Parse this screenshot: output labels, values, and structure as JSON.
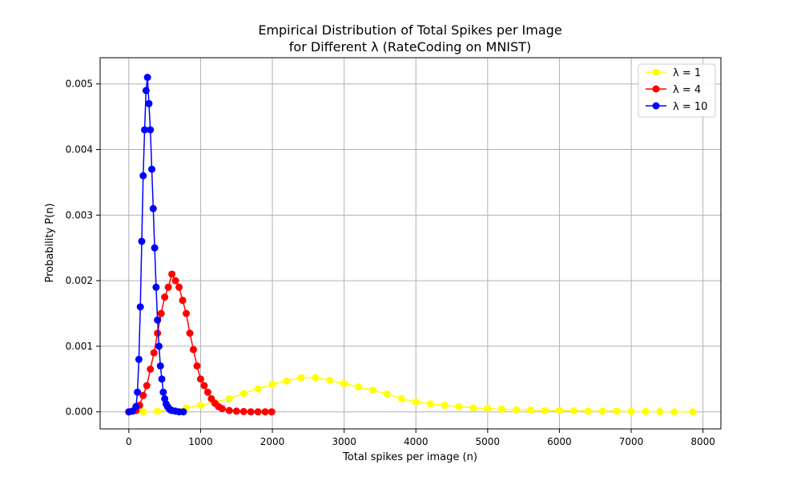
{
  "chart_data": {
    "type": "scatter",
    "title": [
      "Empirical Distribution of Total Spikes per Image",
      "for Different λ (RateCoding on MNIST)"
    ],
    "xlabel": "Total spikes per image (n)",
    "ylabel": "Probability P(n)",
    "xlim": [
      -400,
      8250
    ],
    "ylim": [
      -0.00026,
      0.0054
    ],
    "xticks": [
      0,
      1000,
      2000,
      3000,
      4000,
      5000,
      6000,
      7000,
      8000
    ],
    "yticks": [
      0.0,
      0.001,
      0.002,
      0.003,
      0.004,
      0.005
    ],
    "xtick_labels": [
      "0",
      "1000",
      "2000",
      "3000",
      "4000",
      "5000",
      "6000",
      "7000",
      "8000"
    ],
    "ytick_labels": [
      "0.000",
      "0.001",
      "0.002",
      "0.003",
      "0.004",
      "0.005"
    ],
    "grid": true,
    "legend_position": "top-right",
    "series": [
      {
        "name": "λ = 1",
        "color": "#ffff00",
        "x": [
          0,
          200,
          400,
          600,
          800,
          1000,
          1200,
          1400,
          1600,
          1800,
          2000,
          2200,
          2400,
          2600,
          2800,
          3000,
          3200,
          3400,
          3600,
          3800,
          4000,
          4200,
          4400,
          4600,
          4800,
          5000,
          5200,
          5400,
          5600,
          5800,
          6000,
          6200,
          6400,
          6600,
          6800,
          7000,
          7200,
          7400,
          7600,
          7860
        ],
        "values": [
          0.0,
          0.0,
          1e-05,
          3e-05,
          6e-05,
          0.0001,
          0.00015,
          0.0002,
          0.00028,
          0.00035,
          0.00042,
          0.00047,
          0.00052,
          0.00052,
          0.00048,
          0.00043,
          0.00038,
          0.00033,
          0.00027,
          0.0002,
          0.00015,
          0.00012,
          0.0001,
          8e-05,
          6e-05,
          5e-05,
          4e-05,
          3e-05,
          3e-05,
          2e-05,
          2e-05,
          1.5e-05,
          1e-05,
          1e-05,
          1e-05,
          5e-06,
          5e-06,
          5e-06,
          0.0,
          0.0
        ]
      },
      {
        "name": "λ = 4",
        "color": "#ff0000",
        "x": [
          0,
          100,
          150,
          200,
          250,
          300,
          350,
          400,
          450,
          500,
          550,
          600,
          650,
          700,
          750,
          800,
          850,
          900,
          950,
          1000,
          1050,
          1100,
          1150,
          1200,
          1250,
          1300,
          1400,
          1500,
          1600,
          1700,
          1800,
          1900,
          1990
        ],
        "values": [
          0.0,
          2e-05,
          0.0001,
          0.00025,
          0.0004,
          0.00065,
          0.0009,
          0.0012,
          0.0015,
          0.00175,
          0.0019,
          0.0021,
          0.002,
          0.0019,
          0.0017,
          0.0015,
          0.0012,
          0.00095,
          0.0007,
          0.0005,
          0.0004,
          0.0003,
          0.0002,
          0.00013,
          8e-05,
          5e-05,
          2e-05,
          1e-05,
          5e-06,
          0.0,
          0.0,
          0.0,
          0.0
        ]
      },
      {
        "name": "λ = 10",
        "color": "#0000ff",
        "x": [
          0,
          50,
          100,
          120,
          140,
          160,
          180,
          200,
          220,
          240,
          260,
          280,
          300,
          320,
          340,
          360,
          380,
          400,
          420,
          440,
          460,
          480,
          500,
          520,
          540,
          560,
          580,
          600,
          650,
          700,
          760
        ],
        "values": [
          0.0,
          1e-05,
          8e-05,
          0.0003,
          0.0008,
          0.0016,
          0.0026,
          0.0036,
          0.0043,
          0.0049,
          0.0051,
          0.0047,
          0.0043,
          0.0037,
          0.0031,
          0.0025,
          0.0019,
          0.0014,
          0.001,
          0.0007,
          0.0005,
          0.0003,
          0.0002,
          0.00012,
          8e-05,
          5e-05,
          3e-05,
          2e-05,
          1e-05,
          0.0,
          0.0
        ]
      }
    ]
  }
}
